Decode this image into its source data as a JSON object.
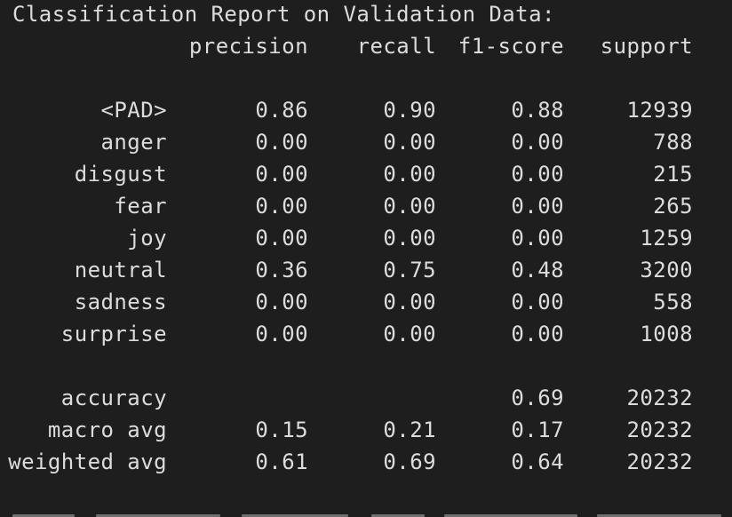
{
  "title": "Classification Report on Validation Data:",
  "headers": {
    "precision": "precision",
    "recall": "recall",
    "f1": "f1-score",
    "support": "support"
  },
  "rows": [
    {
      "label": "<PAD>",
      "precision": "0.86",
      "recall": "0.90",
      "f1": "0.88",
      "support": "12939"
    },
    {
      "label": "anger",
      "precision": "0.00",
      "recall": "0.00",
      "f1": "0.00",
      "support": "788"
    },
    {
      "label": "disgust",
      "precision": "0.00",
      "recall": "0.00",
      "f1": "0.00",
      "support": "215"
    },
    {
      "label": "fear",
      "precision": "0.00",
      "recall": "0.00",
      "f1": "0.00",
      "support": "265"
    },
    {
      "label": "joy",
      "precision": "0.00",
      "recall": "0.00",
      "f1": "0.00",
      "support": "1259"
    },
    {
      "label": "neutral",
      "precision": "0.36",
      "recall": "0.75",
      "f1": "0.48",
      "support": "3200"
    },
    {
      "label": "sadness",
      "precision": "0.00",
      "recall": "0.00",
      "f1": "0.00",
      "support": "558"
    },
    {
      "label": "surprise",
      "precision": "0.00",
      "recall": "0.00",
      "f1": "0.00",
      "support": "1008"
    }
  ],
  "summary": [
    {
      "label": "accuracy",
      "precision": "",
      "recall": "",
      "f1": "0.69",
      "support": "20232"
    },
    {
      "label": "macro avg",
      "precision": "0.15",
      "recall": "0.21",
      "f1": "0.17",
      "support": "20232"
    },
    {
      "label": "weighted avg",
      "precision": "0.61",
      "recall": "0.69",
      "f1": "0.64",
      "support": "20232"
    }
  ],
  "colors": {
    "background": "#1e1e1e",
    "text": "#dcdcdc"
  }
}
